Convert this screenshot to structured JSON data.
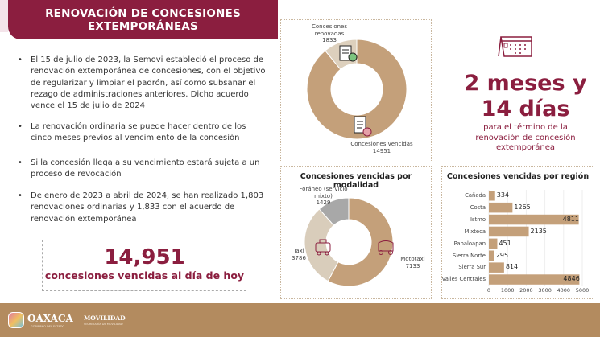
{
  "header": {
    "title_line1": "RENOVACIÓN DE CONCESIONES",
    "title_line2": "EXTEMPORÁNEAS"
  },
  "bullets": [
    "El 15 de julio de 2023, la Semovi estableció el proceso de renovación extemporánea de concesiones, con el objetivo de regularizar y limpiar el padrón, así como subsanar el rezago de administraciones anteriores. Dicho acuerdo vence el 15 de julio de 2024",
    "La renovación ordinaria se puede hacer dentro de los cinco meses previos al vencimiento de la concesión",
    "Si la concesión llega a su vencimiento estará sujeta a un proceso de revocación",
    "De enero de 2023 a abril de 2024,  se han realizado 1,803 renovaciones ordinarias y 1,833 con el acuerdo de renovación extemporánea"
  ],
  "highlight": {
    "number": "14,951",
    "caption": "concesiones vencidas al día de hoy"
  },
  "countdown": {
    "line1": "2 meses y",
    "line2": "14 días",
    "sub1": "para el término de  la",
    "sub2": "renovación de concesión",
    "sub3": "extemporánea",
    "icon": "calendar-icon"
  },
  "footer": {
    "brand": "OAXACA",
    "brand_sub": "GOBIERNO DEL ESTADO",
    "dept": "MOVILIDAD",
    "dept_sub": "SECRETARÍA DE MOVILIDAD"
  },
  "colors": {
    "maroon": "#8b1e3f",
    "tan": "#c4a07a",
    "beige": "#ddd0bd",
    "gray": "#a8a8a8",
    "footer": "#b38b5f"
  },
  "chart_data": [
    {
      "type": "pie",
      "donut": true,
      "title": "",
      "slices": [
        {
          "name": "Concesiones renovadas",
          "value": 1833,
          "label": "1833",
          "color": "#ddd0bd",
          "icon": "document-check-icon"
        },
        {
          "name": "Concesiones vencidas",
          "value": 14951,
          "label": "14951",
          "color": "#c4a07a",
          "icon": "document-x-icon"
        }
      ]
    },
    {
      "type": "pie",
      "donut": true,
      "title": "Concesiones vencidas por modalidad",
      "slices": [
        {
          "name": "Mototaxi",
          "value": 7133,
          "label": "7133",
          "color": "#c4a07a",
          "icon": "mototaxi-icon"
        },
        {
          "name": "Taxi",
          "value": 3786,
          "label": "3786",
          "color": "#d9cdbb",
          "icon": "taxi-icon"
        },
        {
          "name": "Foráneo (servicio mixto)",
          "value": 1429,
          "label": "1429",
          "color": "#a8a8a8"
        }
      ]
    },
    {
      "type": "bar",
      "orientation": "horizontal",
      "title": "Concesiones vencidas por región",
      "categories": [
        "Cañada",
        "Costa",
        "Istmo",
        "Mixteca",
        "Papaloapan",
        "Sierra Norte",
        "Sierra Sur",
        "Valles Centrales"
      ],
      "values": [
        334,
        1265,
        4811,
        2135,
        451,
        295,
        814,
        4846
      ],
      "xlim": [
        0,
        5000
      ],
      "xticks": [
        "0",
        "1000",
        "2000",
        "3000",
        "4000",
        "5000"
      ],
      "grid": true,
      "color": "#c4a07a"
    }
  ]
}
